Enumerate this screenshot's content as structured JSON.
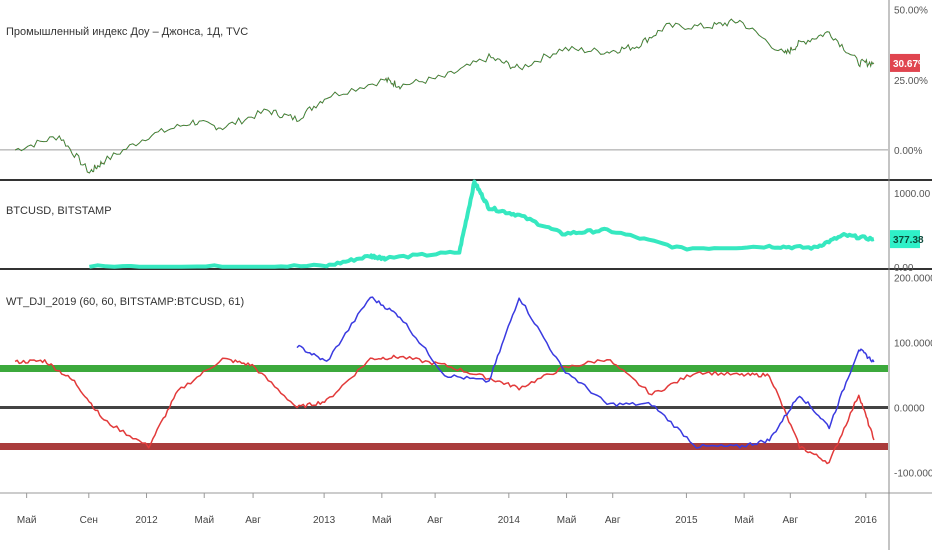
{
  "panes": {
    "dji": {
      "title": "Промышленный индекс Доу – Джонса, 1Д, TVC",
      "axis_labels": [
        "50.00%",
        "25.00%",
        "0.00%"
      ],
      "badge": "30.67%",
      "badge_color": "#e0454f",
      "line_color": "#2e8b3a"
    },
    "btc": {
      "title": "BTCUSD, BITSTAMP",
      "axis_labels": [
        "1000.00",
        "0.00"
      ],
      "badge": "377.38",
      "badge_color": "#2ff0c8",
      "line_color": "#36e8c0"
    },
    "wt": {
      "title": "WT_DJI_2019 (60, 60, BITSTAMP:BTCUSD, 61)",
      "axis_labels": [
        "200.0000",
        "100.0000",
        "0.0000",
        "-100.0000"
      ],
      "levels": [
        {
          "name": "upper",
          "value": 60,
          "color": "#1a9a1a"
        },
        {
          "name": "zero",
          "value": 0,
          "color": "#222222"
        },
        {
          "name": "lower",
          "value": -60,
          "color": "#9b1a1a"
        }
      ],
      "red_color": "#e23a3a",
      "blue_color": "#3a3ae0"
    }
  },
  "x_axis": [
    "Май",
    "Сен",
    "2012",
    "Май",
    "Авг",
    "2013",
    "Май",
    "Авг",
    "2014",
    "Май",
    "Авг",
    "2015",
    "Май",
    "Авг",
    "2016"
  ],
  "chart_data": [
    {
      "type": "line",
      "title": "Промышленный индекс Доу – Джонса, 1Д, TVC",
      "x": [
        "2011-04",
        "2011-07",
        "2011-09",
        "2011-10",
        "2012-01",
        "2012-04",
        "2012-06",
        "2012-09",
        "2012-11",
        "2013-01",
        "2013-05",
        "2013-06",
        "2013-09",
        "2013-12",
        "2014-02",
        "2014-05",
        "2014-08",
        "2014-10",
        "2014-12",
        "2015-03",
        "2015-05",
        "2015-08",
        "2015-09",
        "2015-11",
        "2016-01",
        "2016-02"
      ],
      "values": [
        0,
        5,
        -8,
        -4,
        5,
        10,
        8,
        14,
        11,
        19,
        25,
        23,
        26,
        33,
        29,
        36,
        35,
        37,
        44,
        44,
        46,
        34,
        38,
        42,
        31,
        31
      ],
      "ylim": [
        -10,
        52
      ],
      "y_ticks": [
        "50.00%",
        "25.00%",
        "0.00%"
      ],
      "last_value_label": "30.67%"
    },
    {
      "type": "line",
      "title": "BTCUSD, BITSTAMP",
      "x": [
        "2011-09",
        "2012-06",
        "2013-01",
        "2013-04",
        "2013-05",
        "2013-10",
        "2013-11",
        "2013-12",
        "2014-02",
        "2014-05",
        "2014-08",
        "2015-01",
        "2015-07",
        "2015-10",
        "2015-12",
        "2016-02"
      ],
      "values": [
        5,
        6,
        15,
        150,
        120,
        200,
        1150,
        800,
        700,
        450,
        500,
        250,
        280,
        260,
        430,
        377.38
      ],
      "ylim": [
        0,
        1150
      ],
      "y_ticks": [
        "1000.00",
        "0.00"
      ],
      "last_value_label": "377.38"
    },
    {
      "type": "line",
      "title": "WT_DJI_2019 (60, 60, BITSTAMP:BTCUSD, 61)",
      "x": [
        "2011-04",
        "2011-06",
        "2011-08",
        "2011-10",
        "2012-01",
        "2012-03",
        "2012-06",
        "2012-08",
        "2012-11",
        "2013-01",
        "2013-04",
        "2013-06",
        "2013-09",
        "2013-12",
        "2014-02",
        "2014-05",
        "2014-08",
        "2014-11",
        "2015-02",
        "2015-05",
        "2015-07",
        "2015-09",
        "2015-11",
        "2016-01",
        "2016-02"
      ],
      "series": [
        {
          "values": [
            70,
            72,
            40,
            -20,
            -60,
            25,
            75,
            65,
            0,
            10,
            75,
            78,
            65,
            45,
            30,
            60,
            75,
            20,
            55,
            50,
            50,
            -60,
            -85,
            20,
            -50
          ]
        },
        {
          "values": [
            null,
            null,
            null,
            null,
            null,
            null,
            null,
            null,
            95,
            70,
            170,
            140,
            50,
            40,
            170,
            60,
            5,
            5,
            -60,
            -60,
            -50,
            20,
            -30,
            90,
            70
          ]
        }
      ],
      "ylim": [
        -130,
        210
      ],
      "y_ticks": [
        "200.0000",
        "100.0000",
        "0.0000",
        "-100.0000"
      ],
      "levels": [
        60,
        0,
        -60
      ]
    }
  ]
}
